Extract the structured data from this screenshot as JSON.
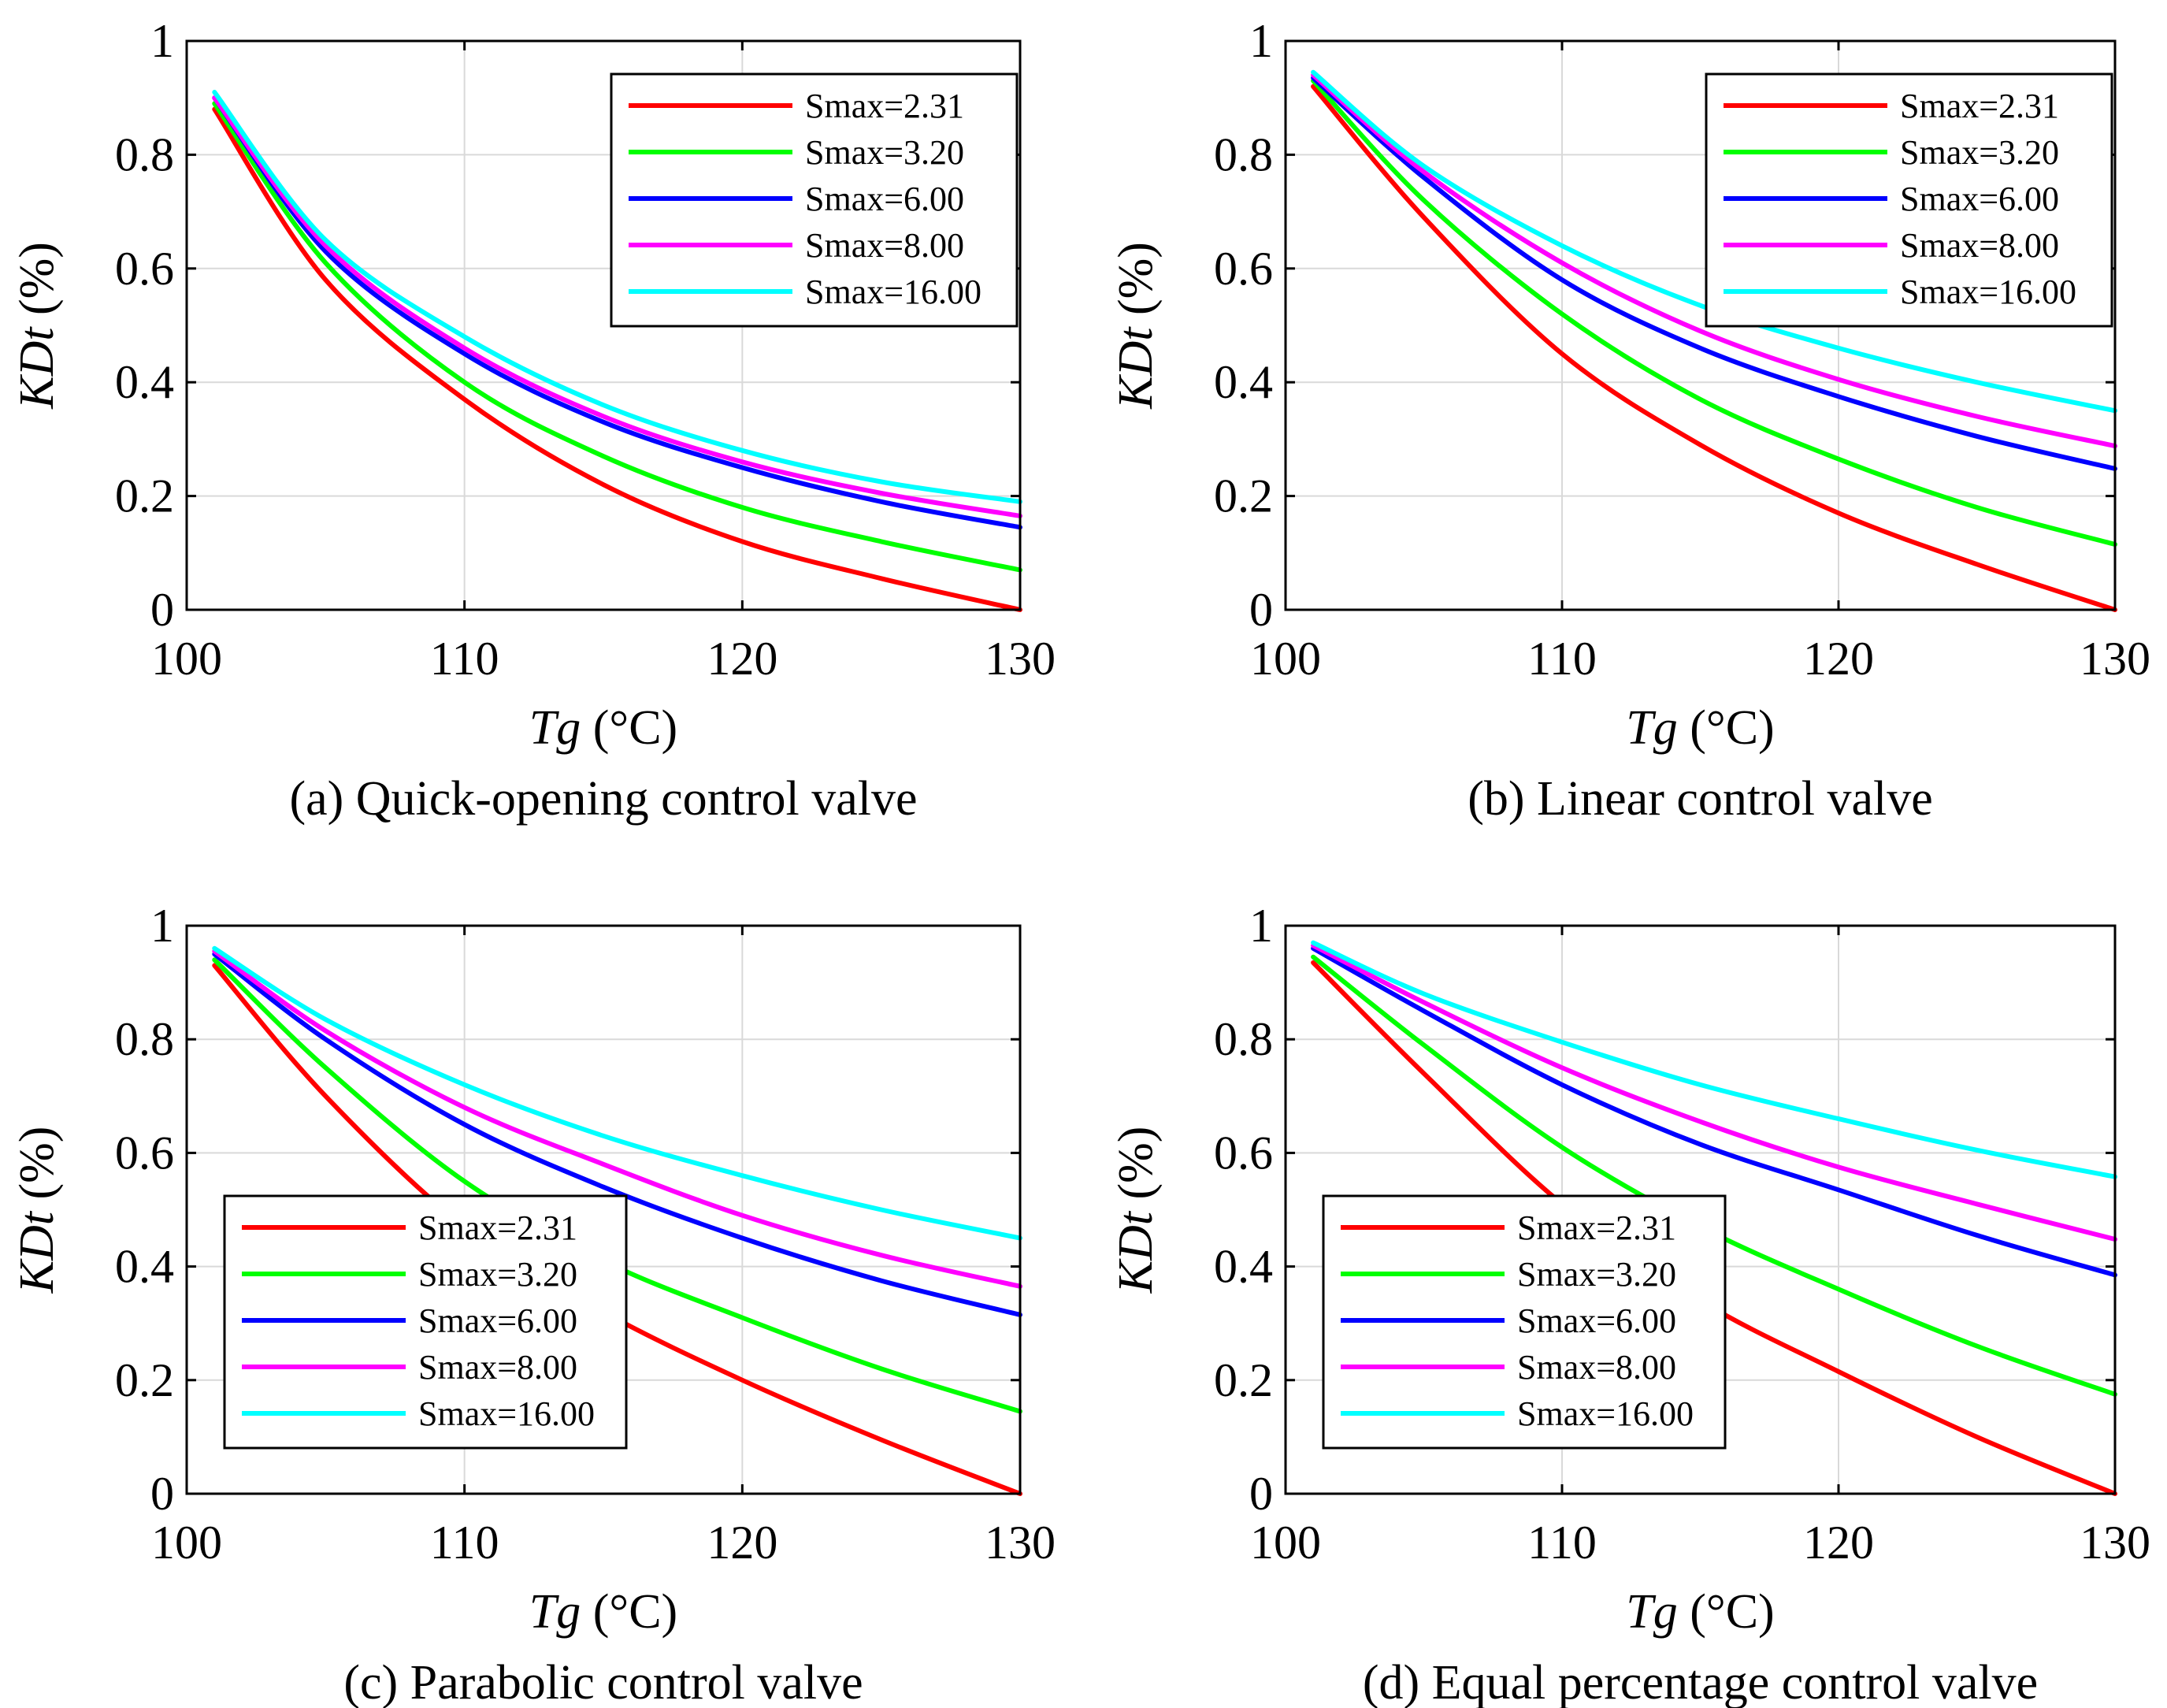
{
  "chart_data": [
    {
      "type": "line",
      "caption": "(a) Quick-opening control valve",
      "xlabel_italic": "Tg",
      "xlabel_unit": " (°C)",
      "ylabel_italic": "KDt",
      "ylabel_unit": " (%)",
      "xlim": [
        100,
        130
      ],
      "ylim": [
        0,
        1
      ],
      "xticks": [
        "100",
        "110",
        "120",
        "130"
      ],
      "yticks": [
        "0",
        "0.2",
        "0.4",
        "0.6",
        "0.8",
        "1"
      ],
      "grid": true,
      "legend_position": "top-right",
      "x": [
        101,
        105,
        110,
        115,
        120,
        125,
        130
      ],
      "series": [
        {
          "name": "Smax=2.31",
          "color": "#ff0000",
          "values": [
            0.88,
            0.58,
            0.37,
            0.22,
            0.12,
            0.055,
            0.0
          ]
        },
        {
          "name": "Smax=3.20",
          "color": "#00ff00",
          "values": [
            0.89,
            0.61,
            0.4,
            0.27,
            0.18,
            0.12,
            0.07
          ]
        },
        {
          "name": "Smax=6.00",
          "color": "#0000ff",
          "values": [
            0.9,
            0.63,
            0.45,
            0.33,
            0.25,
            0.19,
            0.145
          ]
        },
        {
          "name": "Smax=8.00",
          "color": "#ff00ff",
          "values": [
            0.9,
            0.64,
            0.46,
            0.34,
            0.26,
            0.205,
            0.165
          ]
        },
        {
          "name": "Smax=16.00",
          "color": "#00ffff",
          "values": [
            0.91,
            0.65,
            0.48,
            0.36,
            0.28,
            0.225,
            0.19
          ]
        }
      ]
    },
    {
      "type": "line",
      "caption": "(b) Linear control valve",
      "xlabel_italic": "Tg",
      "xlabel_unit": " (°C)",
      "ylabel_italic": "KDt",
      "ylabel_unit": " (%)",
      "xlim": [
        100,
        130
      ],
      "ylim": [
        0,
        1
      ],
      "xticks": [
        "100",
        "110",
        "120",
        "130"
      ],
      "yticks": [
        "0",
        "0.2",
        "0.4",
        "0.6",
        "0.8",
        "1"
      ],
      "grid": true,
      "legend_position": "top-right",
      "x": [
        101,
        105,
        110,
        115,
        120,
        125,
        130
      ],
      "series": [
        {
          "name": "Smax=2.31",
          "color": "#ff0000",
          "values": [
            0.92,
            0.69,
            0.45,
            0.29,
            0.17,
            0.08,
            0.0
          ]
        },
        {
          "name": "Smax=3.20",
          "color": "#00ff00",
          "values": [
            0.93,
            0.72,
            0.52,
            0.37,
            0.265,
            0.18,
            0.115
          ]
        },
        {
          "name": "Smax=6.00",
          "color": "#0000ff",
          "values": [
            0.935,
            0.76,
            0.58,
            0.46,
            0.375,
            0.305,
            0.248
          ]
        },
        {
          "name": "Smax=8.00",
          "color": "#ff00ff",
          "values": [
            0.94,
            0.77,
            0.61,
            0.49,
            0.405,
            0.34,
            0.288
          ]
        },
        {
          "name": "Smax=16.00",
          "color": "#00ffff",
          "values": [
            0.945,
            0.78,
            0.64,
            0.535,
            0.46,
            0.4,
            0.35
          ]
        }
      ]
    },
    {
      "type": "line",
      "caption": "(c) Parabolic control valve",
      "xlabel_italic": "Tg",
      "xlabel_unit": " (°C)",
      "ylabel_italic": "KDt",
      "ylabel_unit": " (%)",
      "xlim": [
        100,
        130
      ],
      "ylim": [
        0,
        1
      ],
      "xticks": [
        "100",
        "110",
        "120",
        "130"
      ],
      "yticks": [
        "0",
        "0.2",
        "0.4",
        "0.6",
        "0.8",
        "1"
      ],
      "grid": true,
      "legend_position": "bottom-left",
      "x": [
        101,
        105,
        110,
        115,
        120,
        125,
        130
      ],
      "series": [
        {
          "name": "Smax=2.31",
          "color": "#ff0000",
          "values": [
            0.93,
            0.7,
            0.47,
            0.32,
            0.2,
            0.095,
            0.0
          ]
        },
        {
          "name": "Smax=3.20",
          "color": "#00ff00",
          "values": [
            0.94,
            0.75,
            0.55,
            0.41,
            0.31,
            0.22,
            0.145
          ]
        },
        {
          "name": "Smax=6.00",
          "color": "#0000ff",
          "values": [
            0.95,
            0.8,
            0.65,
            0.54,
            0.45,
            0.375,
            0.315
          ]
        },
        {
          "name": "Smax=8.00",
          "color": "#ff00ff",
          "values": [
            0.955,
            0.815,
            0.68,
            0.58,
            0.49,
            0.42,
            0.365
          ]
        },
        {
          "name": "Smax=16.00",
          "color": "#00ffff",
          "values": [
            0.96,
            0.835,
            0.72,
            0.63,
            0.56,
            0.5,
            0.45
          ]
        }
      ]
    },
    {
      "type": "line",
      "caption": "(d) Equal percentage control valve",
      "xlabel_italic": "Tg",
      "xlabel_unit": " (°C)",
      "ylabel_italic": "KDt",
      "ylabel_unit": " (%)",
      "xlim": [
        100,
        130
      ],
      "ylim": [
        0,
        1
      ],
      "xticks": [
        "100",
        "110",
        "120",
        "130"
      ],
      "yticks": [
        "0",
        "0.2",
        "0.4",
        "0.6",
        "0.8",
        "1"
      ],
      "grid": true,
      "legend_position": "bottom-left",
      "x": [
        101,
        105,
        110,
        115,
        120,
        125,
        130
      ],
      "series": [
        {
          "name": "Smax=2.31",
          "color": "#ff0000",
          "values": [
            0.935,
            0.74,
            0.51,
            0.34,
            0.215,
            0.1,
            0.0
          ]
        },
        {
          "name": "Smax=3.20",
          "color": "#00ff00",
          "values": [
            0.945,
            0.79,
            0.61,
            0.47,
            0.36,
            0.26,
            0.175
          ]
        },
        {
          "name": "Smax=6.00",
          "color": "#0000ff",
          "values": [
            0.96,
            0.85,
            0.72,
            0.615,
            0.535,
            0.455,
            0.385
          ]
        },
        {
          "name": "Smax=8.00",
          "color": "#ff00ff",
          "values": [
            0.965,
            0.865,
            0.75,
            0.655,
            0.575,
            0.51,
            0.448
          ]
        },
        {
          "name": "Smax=16.00",
          "color": "#00ffff",
          "values": [
            0.97,
            0.88,
            0.795,
            0.72,
            0.66,
            0.605,
            0.558
          ]
        }
      ]
    }
  ]
}
